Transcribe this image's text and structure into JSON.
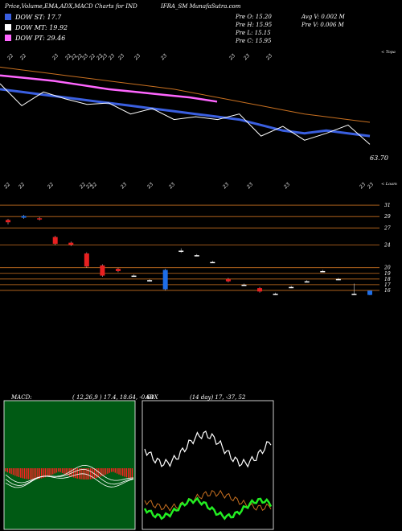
{
  "header": {
    "title_left": "Price,Volume,EMA,ADX,MACD Charts for IND",
    "title_right": "IFRA_SM MunafaSutra.com"
  },
  "legend": [
    {
      "label": "DOW ST: 17.7",
      "color": "#3a5fe0"
    },
    {
      "label": "DOW MT: 19.92",
      "color": "#ffffff"
    },
    {
      "label": "DOW PT: 29.46",
      "color": "#ff66ff"
    }
  ],
  "stats": {
    "prev_open": "Pre   O: 15.20",
    "prev_high": "Pre   H: 15.95",
    "prev_low": "Pre   L: 15.15",
    "prev_close": "Pre   C: 15.95",
    "avg_volume": "Avg V: 0.002  M",
    "prev_volume": "Pre   V: 0.006  M"
  },
  "top_panel": {
    "date_labels": [
      "22",
      "22",
      "23",
      "22",
      "22",
      "22",
      "23",
      "22",
      "23",
      "23",
      "23",
      "23",
      "23",
      "23",
      "23",
      "23",
      "23"
    ],
    "corner_label": "< Topa",
    "value_label": "63.70"
  },
  "chart_data": [
    {
      "type": "line",
      "panel": "price_ema",
      "series": [
        {
          "color": "#3a5fe0",
          "values": [
            68.2,
            68.0,
            67.8,
            67.6,
            67.4,
            67.2,
            67.0,
            66.8,
            66.6,
            66.4,
            66.2,
            66.0,
            65.6,
            65.2,
            65.0,
            65.2,
            65.0,
            64.8
          ]
        },
        {
          "color": "#ffffff",
          "values": [
            68.6,
            67.0,
            68.0,
            67.5,
            67.1,
            67.2,
            66.4,
            66.8,
            66.0,
            66.2,
            66.0,
            66.4,
            64.8,
            65.5,
            64.5,
            65.0,
            65.6,
            64.2
          ]
        },
        {
          "color": "#ff66ff",
          "values": [
            69.2,
            69.0,
            68.8,
            68.5,
            68.2,
            68.0,
            67.8,
            67.6,
            67.3
          ]
        },
        {
          "color": "#c87020",
          "values": [
            69.8,
            69.6,
            69.4,
            69.2,
            69.0,
            68.8,
            68.6,
            68.4,
            68.2,
            67.9,
            67.6,
            67.3,
            67.0,
            66.7,
            66.4,
            66.2,
            66.0,
            65.8
          ]
        }
      ]
    },
    {
      "type": "bar",
      "panel": "candles",
      "date_labels": [
        "22",
        "22",
        "22",
        "22",
        "22",
        "22",
        "23",
        "23",
        "23",
        "23",
        "23",
        "23",
        "23",
        "23"
      ],
      "corner_label": "< Loam",
      "levels": [
        31,
        29,
        27,
        24,
        20,
        19,
        18,
        17,
        16
      ],
      "candles": [
        {
          "i": 0,
          "o": 28.4,
          "c": 28.0,
          "h": 28.6,
          "l": 27.6
        },
        {
          "i": 1,
          "o": 28.8,
          "c": 29.1,
          "h": 29.3,
          "l": 28.6
        },
        {
          "i": 2,
          "o": 28.7,
          "c": 28.5,
          "h": 28.9,
          "l": 28.3
        },
        {
          "i": 3,
          "o": 25.4,
          "c": 24.2,
          "h": 25.6,
          "l": 24.0
        },
        {
          "i": 4,
          "o": 24.4,
          "c": 24.0,
          "h": 24.6,
          "l": 23.8
        },
        {
          "i": 5,
          "o": 22.5,
          "c": 20.2,
          "h": 22.7,
          "l": 20.0
        },
        {
          "i": 6,
          "o": 20.4,
          "c": 18.6,
          "h": 20.6,
          "l": 18.4
        },
        {
          "i": 7,
          "o": 19.8,
          "c": 19.4,
          "h": 20.0,
          "l": 19.2
        },
        {
          "i": 8,
          "o": 18.6,
          "c": 18.6,
          "h": 18.8,
          "l": 18.4
        },
        {
          "i": 9,
          "o": 17.8,
          "c": 17.8,
          "h": 18.0,
          "l": 17.6
        },
        {
          "i": 10,
          "o": 16.2,
          "c": 19.6,
          "h": 19.8,
          "l": 16.0
        },
        {
          "i": 11,
          "o": 23.0,
          "c": 23.0,
          "h": 23.4,
          "l": 22.6
        },
        {
          "i": 12,
          "o": 22.2,
          "c": 22.2,
          "h": 22.4,
          "l": 22.0
        },
        {
          "i": 13,
          "o": 21.0,
          "c": 21.0,
          "h": 21.2,
          "l": 20.8
        },
        {
          "i": 14,
          "o": 18.0,
          "c": 17.6,
          "h": 18.2,
          "l": 17.4
        },
        {
          "i": 15,
          "o": 17.0,
          "c": 17.0,
          "h": 17.2,
          "l": 16.8
        },
        {
          "i": 16,
          "o": 16.4,
          "c": 15.8,
          "h": 16.6,
          "l": 15.6
        },
        {
          "i": 17,
          "o": 15.4,
          "c": 15.4,
          "h": 15.6,
          "l": 15.2
        },
        {
          "i": 18,
          "o": 16.6,
          "c": 16.6,
          "h": 16.8,
          "l": 16.4
        },
        {
          "i": 19,
          "o": 17.6,
          "c": 17.6,
          "h": 17.8,
          "l": 17.4
        },
        {
          "i": 20,
          "o": 19.4,
          "c": 19.4,
          "h": 19.6,
          "l": 19.2
        },
        {
          "i": 21,
          "o": 18.0,
          "c": 18.0,
          "h": 18.2,
          "l": 17.8
        },
        {
          "i": 22,
          "o": 15.4,
          "c": 15.4,
          "h": 17.2,
          "l": 15.2
        },
        {
          "i": 23,
          "o": 15.2,
          "c": 15.95,
          "h": 15.95,
          "l": 15.15
        }
      ]
    },
    {
      "type": "bar",
      "panel": "macd",
      "title": "MACD:",
      "params": "( 12,26,9 ) 17.4,  18.64,  -0.64"
    },
    {
      "type": "line",
      "panel": "adx",
      "title": "ADX",
      "params": "(14  day) 17,  -37,  52"
    }
  ]
}
